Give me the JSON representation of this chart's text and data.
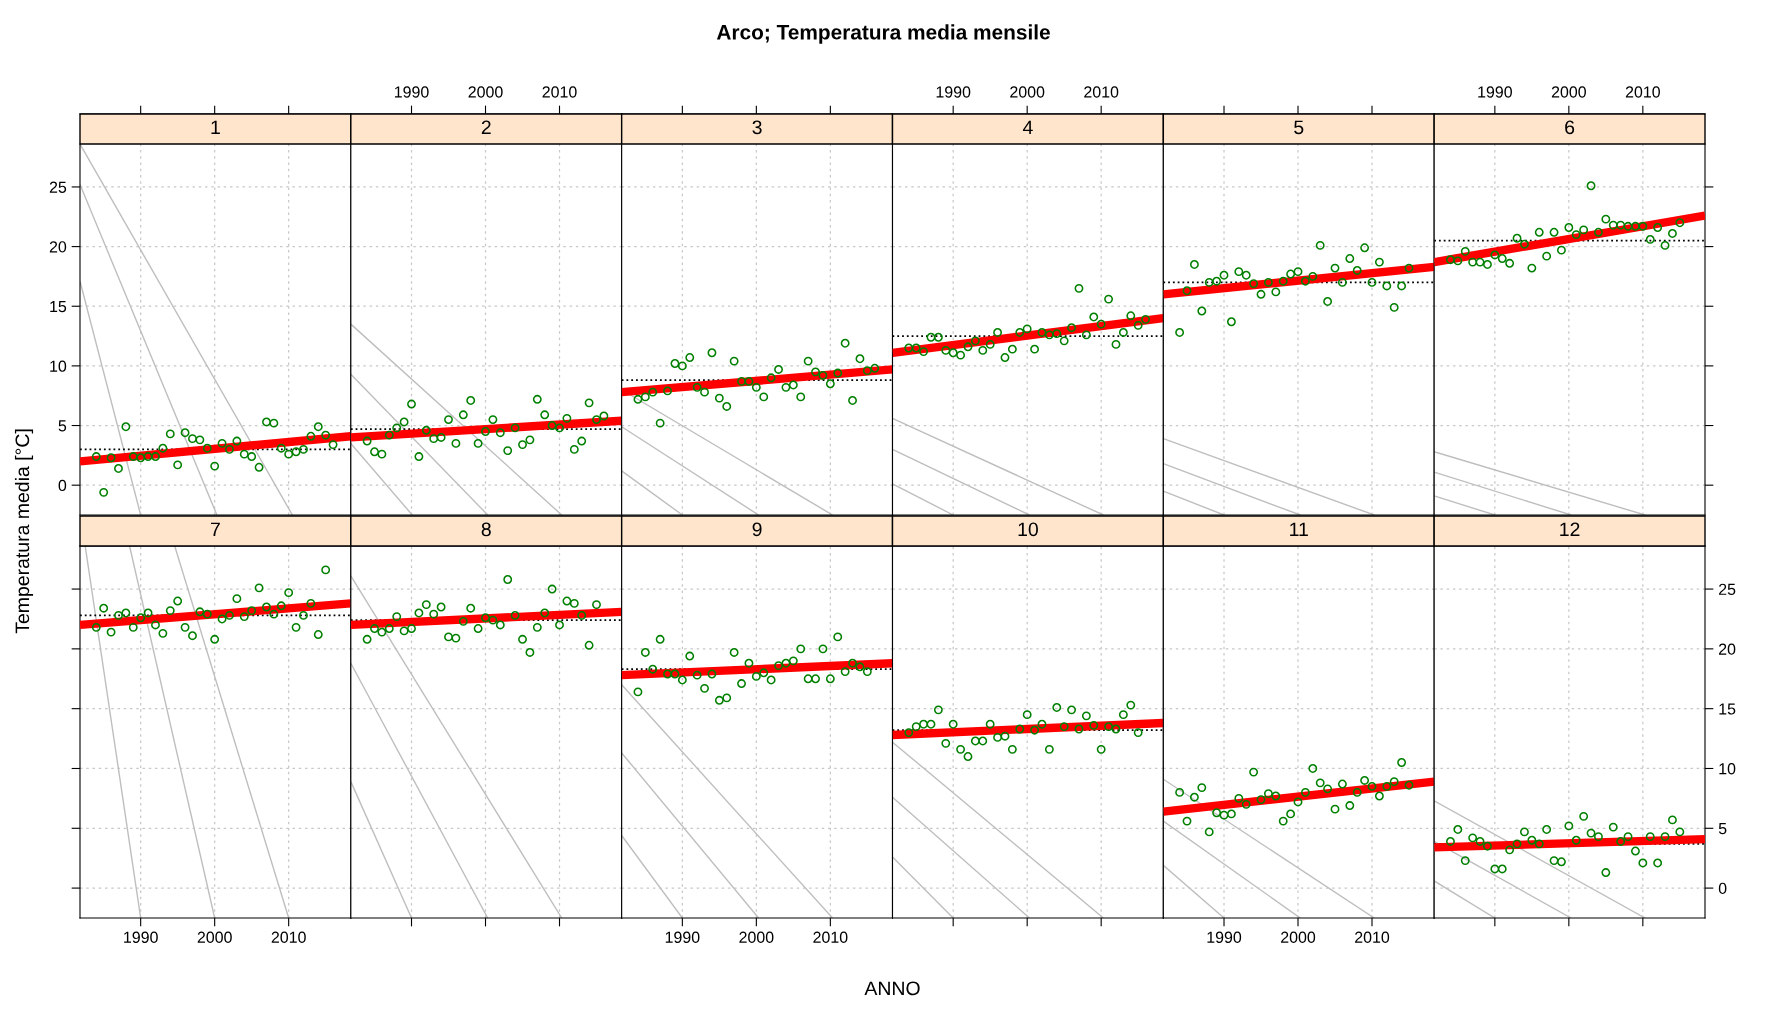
{
  "chart_data": [
    {
      "type": "scatter",
      "title": "1",
      "annotations": [
        "Arco; Temperatura media mensile"
      ],
      "ylabel": "Temperatura media [°C]",
      "xlim": [
        1981.8,
        2018.4
      ],
      "ylim": [
        -2.5,
        28.6
      ],
      "xticks": [
        1990,
        2000,
        2010
      ],
      "yticks": [
        0,
        5,
        10,
        15,
        20,
        25
      ],
      "grid": true,
      "tick_labels": "y",
      "x": [
        1984,
        1985,
        1986,
        1987,
        1988,
        1989,
        1990,
        1991,
        1992,
        1993,
        1994,
        1995,
        1996,
        1997,
        1998,
        1999,
        2000,
        2001,
        2002,
        2003,
        2004,
        2005,
        2006,
        2007,
        2008,
        2009,
        2010,
        2011,
        2012,
        2013,
        2014,
        2015,
        2016
      ],
      "ref_lines": [
        {
          "axis": "y",
          "value": 3.0,
          "color": "#000000",
          "line_style": "dotted"
        }
      ],
      "series": [
        {
          "marker": "circle",
          "color": "#008000",
          "values": [
            2.4,
            -0.6,
            2.3,
            1.4,
            4.9,
            2.4,
            2.3,
            2.4,
            2.4,
            3.1,
            4.3,
            1.7,
            4.4,
            3.9,
            3.8,
            3.1,
            1.6,
            3.5,
            3.0,
            3.7,
            2.6,
            2.4,
            1.5,
            5.3,
            5.2,
            3.1,
            2.6,
            2.8,
            3.0,
            4.1,
            4.9,
            4.2,
            3.4
          ]
        },
        {
          "type": "line",
          "color": "#ff0000",
          "x": [
            1981.8,
            2018.4
          ],
          "values": [
            2.0,
            4.1
          ]
        },
        {
          "type": "line",
          "color": "#bebebe",
          "x": [
            1981.8,
            2010.5
          ],
          "values": [
            28.6,
            -2.5
          ]
        },
        {
          "type": "line",
          "color": "#bebebe",
          "x": [
            1981.8,
            2000.3
          ],
          "values": [
            25.2,
            -2.5
          ]
        },
        {
          "type": "line",
          "color": "#bebebe",
          "x": [
            1981.8,
            1990.0
          ],
          "values": [
            17.1,
            -2.5
          ]
        }
      ]
    },
    {
      "type": "scatter",
      "title": "2",
      "xlim": [
        1981.8,
        2018.4
      ],
      "ylim": [
        -2.5,
        28.6
      ],
      "xticks": [
        1990,
        2000,
        2010
      ],
      "yticks": [
        0,
        5,
        10,
        15,
        20,
        25
      ],
      "grid": true,
      "tick_labels": "x",
      "x": [
        1984,
        1985,
        1986,
        1987,
        1988,
        1989,
        1990,
        1991,
        1992,
        1993,
        1994,
        1995,
        1996,
        1997,
        1998,
        1999,
        2000,
        2001,
        2002,
        2003,
        2004,
        2005,
        2006,
        2007,
        2008,
        2009,
        2010,
        2011,
        2012,
        2013,
        2014,
        2015,
        2016
      ],
      "ref_lines": [
        {
          "axis": "y",
          "value": 4.7,
          "color": "#000000",
          "line_style": "dotted"
        }
      ],
      "series": [
        {
          "marker": "circle",
          "color": "#008000",
          "values": [
            3.7,
            2.8,
            2.6,
            4.2,
            4.8,
            5.3,
            6.8,
            2.4,
            4.6,
            3.9,
            4.0,
            5.5,
            3.5,
            5.9,
            7.1,
            3.5,
            4.5,
            5.5,
            4.4,
            2.9,
            4.8,
            3.4,
            3.8,
            7.2,
            5.9,
            5.0,
            4.8,
            5.6,
            3.0,
            3.7,
            6.9,
            5.5,
            5.8
          ]
        },
        {
          "type": "line",
          "color": "#ff0000",
          "x": [
            1981.8,
            2018.4
          ],
          "values": [
            4.0,
            5.4
          ]
        },
        {
          "type": "line",
          "color": "#bebebe",
          "x": [
            1981.8,
            2010.3
          ],
          "values": [
            13.5,
            -2.5
          ]
        },
        {
          "type": "line",
          "color": "#bebebe",
          "x": [
            1981.8,
            2000.3
          ],
          "values": [
            9.3,
            -2.5
          ]
        },
        {
          "type": "line",
          "color": "#bebebe",
          "x": [
            1981.8,
            1990.1
          ],
          "values": [
            3.5,
            -2.5
          ]
        }
      ]
    },
    {
      "type": "scatter",
      "title": "3",
      "xlim": [
        1981.8,
        2018.4
      ],
      "ylim": [
        -2.5,
        28.6
      ],
      "xticks": [
        1990,
        2000,
        2010
      ],
      "yticks": [
        0,
        5,
        10,
        15,
        20,
        25
      ],
      "grid": true,
      "tick_labels": false,
      "x": [
        1984,
        1985,
        1986,
        1987,
        1988,
        1989,
        1990,
        1991,
        1992,
        1993,
        1994,
        1995,
        1996,
        1997,
        1998,
        1999,
        2000,
        2001,
        2002,
        2003,
        2004,
        2005,
        2006,
        2007,
        2008,
        2009,
        2010,
        2011,
        2012,
        2013,
        2014,
        2015,
        2016
      ],
      "ref_lines": [
        {
          "axis": "y",
          "value": 8.8,
          "color": "#000000",
          "line_style": "dotted"
        }
      ],
      "series": [
        {
          "marker": "circle",
          "color": "#008000",
          "values": [
            7.2,
            7.4,
            7.8,
            5.2,
            7.9,
            10.2,
            10.0,
            10.7,
            8.2,
            7.8,
            11.1,
            7.3,
            6.6,
            10.4,
            8.7,
            8.7,
            8.2,
            7.4,
            9.0,
            9.7,
            8.2,
            8.4,
            7.4,
            10.4,
            9.5,
            9.2,
            8.5,
            9.4,
            11.9,
            7.1,
            10.6,
            9.6,
            9.8
          ]
        },
        {
          "type": "line",
          "color": "#ff0000",
          "x": [
            1981.8,
            2018.4
          ],
          "values": [
            7.8,
            9.7
          ]
        },
        {
          "type": "line",
          "color": "#bebebe",
          "x": [
            1981.8,
            2010.3
          ],
          "values": [
            8.0,
            -2.5
          ]
        },
        {
          "type": "line",
          "color": "#bebebe",
          "x": [
            1981.8,
            2000.3
          ],
          "values": [
            4.9,
            -2.5
          ]
        },
        {
          "type": "line",
          "color": "#bebebe",
          "x": [
            1981.8,
            1990.0
          ],
          "values": [
            1.2,
            -2.5
          ]
        }
      ]
    },
    {
      "type": "scatter",
      "title": "4",
      "xlim": [
        1981.8,
        2018.4
      ],
      "ylim": [
        -2.5,
        28.6
      ],
      "xticks": [
        1990,
        2000,
        2010
      ],
      "yticks": [
        0,
        5,
        10,
        15,
        20,
        25
      ],
      "grid": true,
      "tick_labels": "x",
      "x": [
        1984,
        1985,
        1986,
        1987,
        1988,
        1989,
        1990,
        1991,
        1992,
        1993,
        1994,
        1995,
        1996,
        1997,
        1998,
        1999,
        2000,
        2001,
        2002,
        2003,
        2004,
        2005,
        2006,
        2007,
        2008,
        2009,
        2010,
        2011,
        2012,
        2013,
        2014,
        2015,
        2016
      ],
      "ref_lines": [
        {
          "axis": "y",
          "value": 12.5,
          "color": "#000000",
          "line_style": "dotted"
        }
      ],
      "series": [
        {
          "marker": "circle",
          "color": "#008000",
          "values": [
            11.5,
            11.5,
            11.2,
            12.4,
            12.4,
            11.3,
            11.1,
            10.9,
            11.6,
            12.1,
            11.3,
            11.8,
            12.8,
            10.7,
            11.4,
            12.8,
            13.1,
            11.4,
            12.8,
            12.6,
            12.7,
            12.1,
            13.2,
            16.5,
            12.6,
            14.1,
            13.5,
            15.6,
            11.8,
            12.8,
            14.2,
            13.4,
            13.9
          ]
        },
        {
          "type": "line",
          "color": "#ff0000",
          "x": [
            1981.8,
            2018.4
          ],
          "values": [
            11.1,
            14.0
          ]
        },
        {
          "type": "line",
          "color": "#bebebe",
          "x": [
            1981.8,
            2010.3
          ],
          "values": [
            5.6,
            -2.5
          ]
        },
        {
          "type": "line",
          "color": "#bebebe",
          "x": [
            1981.8,
            2000.3
          ],
          "values": [
            3.0,
            -2.5
          ]
        },
        {
          "type": "line",
          "color": "#bebebe",
          "x": [
            1981.8,
            1990.0
          ],
          "values": [
            0.1,
            -2.5
          ]
        }
      ]
    },
    {
      "type": "scatter",
      "title": "5",
      "xlim": [
        1981.8,
        2018.4
      ],
      "ylim": [
        -2.5,
        28.6
      ],
      "xticks": [
        1990,
        2000,
        2010
      ],
      "yticks": [
        0,
        5,
        10,
        15,
        20,
        25
      ],
      "grid": true,
      "tick_labels": false,
      "x": [
        1984,
        1985,
        1986,
        1987,
        1988,
        1989,
        1990,
        1991,
        1992,
        1993,
        1994,
        1995,
        1996,
        1997,
        1998,
        1999,
        2000,
        2001,
        2002,
        2003,
        2004,
        2005,
        2006,
        2007,
        2008,
        2009,
        2010,
        2011,
        2012,
        2013,
        2014,
        2015
      ],
      "ref_lines": [
        {
          "axis": "y",
          "value": 17.0,
          "color": "#000000",
          "line_style": "dotted"
        }
      ],
      "series": [
        {
          "marker": "circle",
          "color": "#008000",
          "values": [
            12.8,
            16.3,
            18.5,
            14.6,
            17.0,
            17.1,
            17.6,
            13.7,
            17.9,
            17.6,
            16.9,
            16.0,
            17.0,
            16.2,
            17.1,
            17.7,
            17.9,
            17.1,
            17.5,
            20.1,
            15.4,
            18.2,
            17.0,
            19.0,
            18.0,
            19.9,
            17.0,
            18.7,
            16.7,
            14.9,
            16.7,
            18.2
          ]
        },
        {
          "type": "line",
          "color": "#ff0000",
          "x": [
            1981.8,
            2018.4
          ],
          "values": [
            16.0,
            18.3
          ]
        },
        {
          "type": "line",
          "color": "#bebebe",
          "x": [
            1981.8,
            2010.3
          ],
          "values": [
            3.9,
            -2.5
          ]
        },
        {
          "type": "line",
          "color": "#bebebe",
          "x": [
            1981.8,
            2000.3
          ],
          "values": [
            1.8,
            -2.5
          ]
        },
        {
          "type": "line",
          "color": "#bebebe",
          "x": [
            1981.8,
            1990.0
          ],
          "values": [
            -0.5,
            -2.5
          ]
        }
      ]
    },
    {
      "type": "scatter",
      "title": "6",
      "xlim": [
        1981.8,
        2018.4
      ],
      "ylim": [
        -2.5,
        28.6
      ],
      "xticks": [
        1990,
        2000,
        2010
      ],
      "yticks": [
        0,
        5,
        10,
        15,
        20,
        25
      ],
      "grid": true,
      "tick_labels": "x",
      "x": [
        1984,
        1985,
        1986,
        1987,
        1988,
        1989,
        1990,
        1991,
        1992,
        1993,
        1994,
        1995,
        1996,
        1997,
        1998,
        1999,
        2000,
        2001,
        2002,
        2003,
        2004,
        2005,
        2006,
        2007,
        2008,
        2009,
        2010,
        2011,
        2012,
        2013,
        2014,
        2015
      ],
      "ref_lines": [
        {
          "axis": "y",
          "value": 20.5,
          "color": "#000000",
          "line_style": "dotted"
        }
      ],
      "series": [
        {
          "marker": "circle",
          "color": "#008000",
          "values": [
            18.9,
            18.8,
            19.6,
            18.7,
            18.7,
            18.5,
            19.3,
            19.0,
            18.6,
            20.7,
            20.2,
            18.2,
            21.2,
            19.2,
            21.2,
            19.7,
            21.6,
            21.0,
            21.4,
            25.1,
            21.2,
            22.3,
            21.8,
            21.8,
            21.7,
            21.7,
            21.7,
            20.6,
            21.6,
            20.1,
            21.1,
            22.0
          ]
        },
        {
          "type": "line",
          "color": "#ff0000",
          "x": [
            1981.8,
            2018.4
          ],
          "values": [
            18.7,
            22.6
          ]
        },
        {
          "type": "line",
          "color": "#bebebe",
          "x": [
            1981.8,
            2010.3
          ],
          "values": [
            2.8,
            -2.5
          ]
        },
        {
          "type": "line",
          "color": "#bebebe",
          "x": [
            1981.8,
            2000.3
          ],
          "values": [
            1.1,
            -2.5
          ]
        },
        {
          "type": "line",
          "color": "#bebebe",
          "x": [
            1981.8,
            1990.0
          ],
          "values": [
            -0.9,
            -2.5
          ]
        }
      ]
    },
    {
      "type": "scatter",
      "title": "7",
      "xlim": [
        1981.8,
        2018.4
      ],
      "ylim": [
        -2.5,
        28.6
      ],
      "xticks": [
        1990,
        2000,
        2010
      ],
      "yticks": [
        0,
        5,
        10,
        15,
        20,
        25
      ],
      "grid": true,
      "tick_labels": "x",
      "x": [
        1984,
        1985,
        1986,
        1987,
        1988,
        1989,
        1990,
        1991,
        1992,
        1993,
        1994,
        1995,
        1996,
        1997,
        1998,
        1999,
        2000,
        2001,
        2002,
        2003,
        2004,
        2005,
        2006,
        2007,
        2008,
        2009,
        2010,
        2011,
        2012,
        2013,
        2014,
        2015
      ],
      "ref_lines": [
        {
          "axis": "y",
          "value": 22.8,
          "color": "#000000",
          "line_style": "dotted"
        }
      ],
      "series": [
        {
          "marker": "circle",
          "color": "#008000",
          "values": [
            21.8,
            23.4,
            21.4,
            22.8,
            23.0,
            21.8,
            22.6,
            23.0,
            22.0,
            21.3,
            23.2,
            24.0,
            21.8,
            21.1,
            23.1,
            22.9,
            20.8,
            22.5,
            22.8,
            24.2,
            22.7,
            23.2,
            25.1,
            23.5,
            22.9,
            23.6,
            24.7,
            21.8,
            22.8,
            23.8,
            21.2,
            26.6
          ]
        },
        {
          "type": "line",
          "color": "#ff0000",
          "x": [
            1981.8,
            2018.4
          ],
          "values": [
            22.0,
            23.8
          ]
        },
        {
          "type": "line",
          "color": "#bebebe",
          "x": [
            1982.5,
            1990.0
          ],
          "values": [
            28.6,
            -2.5
          ]
        },
        {
          "type": "line",
          "color": "#bebebe",
          "x": [
            1988.5,
            2000.0
          ],
          "values": [
            28.6,
            -2.5
          ]
        },
        {
          "type": "line",
          "color": "#bebebe",
          "x": [
            1994.6,
            2010.0
          ],
          "values": [
            28.6,
            -2.5
          ]
        }
      ]
    },
    {
      "type": "scatter",
      "title": "8",
      "xlim": [
        1981.8,
        2018.4
      ],
      "ylim": [
        -2.5,
        28.6
      ],
      "xticks": [
        1990,
        2000,
        2010
      ],
      "yticks": [
        0,
        5,
        10,
        15,
        20,
        25
      ],
      "grid": true,
      "tick_labels": false,
      "x": [
        1984,
        1985,
        1986,
        1987,
        1988,
        1989,
        1990,
        1991,
        1992,
        1993,
        1994,
        1995,
        1996,
        1997,
        1998,
        1999,
        2000,
        2001,
        2002,
        2003,
        2004,
        2005,
        2006,
        2007,
        2008,
        2009,
        2010,
        2011,
        2012,
        2013,
        2014,
        2015
      ],
      "ref_lines": [
        {
          "axis": "y",
          "value": 22.4,
          "color": "#000000",
          "line_style": "dotted"
        }
      ],
      "series": [
        {
          "marker": "circle",
          "color": "#008000",
          "values": [
            20.8,
            21.7,
            21.4,
            21.7,
            22.7,
            21.5,
            21.7,
            23.0,
            23.7,
            22.9,
            23.5,
            21.0,
            20.9,
            22.3,
            23.4,
            21.7,
            22.6,
            22.4,
            22.0,
            25.8,
            22.8,
            20.8,
            19.7,
            21.8,
            23.0,
            25.0,
            22.0,
            24.0,
            23.8,
            22.8,
            20.3,
            23.7
          ]
        },
        {
          "type": "line",
          "color": "#ff0000",
          "x": [
            1981.8,
            2018.4
          ],
          "values": [
            22.0,
            23.1
          ]
        },
        {
          "type": "line",
          "color": "#bebebe",
          "x": [
            1981.8,
            2010.3
          ],
          "values": [
            26.1,
            -2.5
          ]
        },
        {
          "type": "line",
          "color": "#bebebe",
          "x": [
            1981.8,
            2000.3
          ],
          "values": [
            18.8,
            -2.5
          ]
        },
        {
          "type": "line",
          "color": "#bebebe",
          "x": [
            1981.8,
            1990.0
          ],
          "values": [
            8.9,
            -2.5
          ]
        }
      ]
    },
    {
      "type": "scatter",
      "title": "9",
      "xlim": [
        1981.8,
        2018.4
      ],
      "ylim": [
        -2.5,
        28.6
      ],
      "xticks": [
        1990,
        2000,
        2010
      ],
      "yticks": [
        0,
        5,
        10,
        15,
        20,
        25
      ],
      "grid": true,
      "tick_labels": "x",
      "xlabel": "ANNO",
      "x": [
        1984,
        1985,
        1986,
        1987,
        1988,
        1989,
        1990,
        1991,
        1992,
        1993,
        1994,
        1995,
        1996,
        1997,
        1998,
        1999,
        2000,
        2001,
        2002,
        2003,
        2004,
        2005,
        2006,
        2007,
        2008,
        2009,
        2010,
        2011,
        2012,
        2013,
        2014,
        2015
      ],
      "ref_lines": [
        {
          "axis": "y",
          "value": 18.3,
          "color": "#000000",
          "line_style": "dotted"
        }
      ],
      "series": [
        {
          "marker": "circle",
          "color": "#008000",
          "values": [
            16.4,
            19.7,
            18.3,
            20.8,
            17.9,
            17.9,
            17.4,
            19.4,
            17.8,
            16.7,
            17.9,
            15.7,
            15.9,
            19.7,
            17.1,
            18.8,
            17.7,
            18.0,
            17.4,
            18.6,
            18.8,
            19.0,
            20.0,
            17.5,
            17.5,
            20.0,
            17.5,
            21.0,
            18.1,
            18.8,
            18.5,
            18.1
          ]
        },
        {
          "type": "line",
          "color": "#ff0000",
          "x": [
            1981.8,
            2018.4
          ],
          "values": [
            17.8,
            18.8
          ]
        },
        {
          "type": "line",
          "color": "#bebebe",
          "x": [
            1981.8,
            2010.3
          ],
          "values": [
            17.0,
            -2.5
          ]
        },
        {
          "type": "line",
          "color": "#bebebe",
          "x": [
            1981.8,
            2000.3
          ],
          "values": [
            11.3,
            -2.5
          ]
        },
        {
          "type": "line",
          "color": "#bebebe",
          "x": [
            1981.8,
            1990.0
          ],
          "values": [
            4.4,
            -2.5
          ]
        }
      ]
    },
    {
      "type": "scatter",
      "title": "10",
      "xlim": [
        1981.8,
        2018.4
      ],
      "ylim": [
        -2.5,
        28.6
      ],
      "xticks": [
        1990,
        2000,
        2010
      ],
      "yticks": [
        0,
        5,
        10,
        15,
        20,
        25
      ],
      "grid": true,
      "tick_labels": false,
      "x": [
        1984,
        1985,
        1986,
        1987,
        1988,
        1989,
        1990,
        1991,
        1992,
        1993,
        1994,
        1995,
        1996,
        1997,
        1998,
        1999,
        2000,
        2001,
        2002,
        2003,
        2004,
        2005,
        2006,
        2007,
        2008,
        2009,
        2010,
        2011,
        2012,
        2013,
        2014,
        2015
      ],
      "ref_lines": [
        {
          "axis": "y",
          "value": 13.2,
          "color": "#000000",
          "line_style": "dotted"
        }
      ],
      "series": [
        {
          "marker": "circle",
          "color": "#008000",
          "values": [
            13.0,
            13.5,
            13.7,
            13.7,
            14.9,
            12.1,
            13.7,
            11.6,
            11.0,
            12.3,
            12.3,
            13.7,
            12.6,
            12.7,
            11.6,
            13.3,
            14.5,
            13.2,
            13.7,
            11.6,
            15.1,
            13.5,
            14.9,
            13.3,
            14.4,
            13.6,
            11.6,
            13.5,
            13.3,
            14.5,
            15.3,
            13.0
          ]
        },
        {
          "type": "line",
          "color": "#ff0000",
          "x": [
            1981.8,
            2018.4
          ],
          "values": [
            12.8,
            13.8
          ]
        },
        {
          "type": "line",
          "color": "#bebebe",
          "x": [
            1981.8,
            2010.3
          ],
          "values": [
            12.2,
            -2.5
          ]
        },
        {
          "type": "line",
          "color": "#bebebe",
          "x": [
            1981.8,
            2000.3
          ],
          "values": [
            7.6,
            -2.5
          ]
        },
        {
          "type": "line",
          "color": "#bebebe",
          "x": [
            1981.8,
            1990.0
          ],
          "values": [
            2.6,
            -2.5
          ]
        }
      ]
    },
    {
      "type": "scatter",
      "title": "11",
      "xlim": [
        1981.8,
        2018.4
      ],
      "ylim": [
        -2.5,
        28.6
      ],
      "xticks": [
        1990,
        2000,
        2010
      ],
      "yticks": [
        0,
        5,
        10,
        15,
        20,
        25
      ],
      "grid": true,
      "tick_labels": "x",
      "x": [
        1984,
        1985,
        1986,
        1987,
        1988,
        1989,
        1990,
        1991,
        1992,
        1993,
        1994,
        1995,
        1996,
        1997,
        1998,
        1999,
        2000,
        2001,
        2002,
        2003,
        2004,
        2005,
        2006,
        2007,
        2008,
        2009,
        2010,
        2011,
        2012,
        2013,
        2014,
        2015
      ],
      "series": [
        {
          "marker": "circle",
          "color": "#008000",
          "values": [
            8.0,
            5.6,
            7.6,
            8.4,
            4.7,
            6.3,
            6.1,
            6.2,
            7.5,
            7.0,
            9.7,
            7.4,
            7.9,
            7.7,
            5.6,
            6.2,
            7.2,
            8.0,
            10.0,
            8.8,
            8.3,
            6.6,
            8.7,
            6.9,
            8.0,
            9.0,
            8.5,
            7.7,
            8.5,
            8.9,
            10.5,
            8.6
          ]
        },
        {
          "type": "line",
          "color": "#ff0000",
          "x": [
            1981.8,
            2018.4
          ],
          "values": [
            6.4,
            8.9
          ]
        },
        {
          "type": "line",
          "color": "#bebebe",
          "x": [
            1981.8,
            2010.3
          ],
          "values": [
            9.1,
            -2.5
          ]
        },
        {
          "type": "line",
          "color": "#bebebe",
          "x": [
            1981.8,
            2000.3
          ],
          "values": [
            5.6,
            -2.5
          ]
        },
        {
          "type": "line",
          "color": "#bebebe",
          "x": [
            1981.8,
            1990.0
          ],
          "values": [
            1.9,
            -2.5
          ]
        }
      ]
    },
    {
      "type": "scatter",
      "title": "12",
      "xlim": [
        1981.8,
        2018.4
      ],
      "ylim": [
        -2.5,
        28.6
      ],
      "xticks": [
        1990,
        2000,
        2010
      ],
      "yticks": [
        0,
        5,
        10,
        15,
        20,
        25
      ],
      "grid": true,
      "tick_labels": "y",
      "x": [
        1984,
        1985,
        1986,
        1987,
        1988,
        1989,
        1990,
        1991,
        1992,
        1993,
        1994,
        1995,
        1996,
        1997,
        1998,
        1999,
        2000,
        2001,
        2002,
        2003,
        2004,
        2005,
        2006,
        2007,
        2008,
        2009,
        2010,
        2011,
        2012,
        2013,
        2014,
        2015
      ],
      "ref_lines": [
        {
          "axis": "y",
          "value": 3.7,
          "color": "#000000",
          "line_style": "dotted"
        }
      ],
      "series": [
        {
          "marker": "circle",
          "color": "#008000",
          "values": [
            3.9,
            4.9,
            2.3,
            4.2,
            3.9,
            3.5,
            1.6,
            1.6,
            3.2,
            3.7,
            4.7,
            4.0,
            3.7,
            4.9,
            2.3,
            2.2,
            5.2,
            4.0,
            6.0,
            4.6,
            4.3,
            1.3,
            5.1,
            3.9,
            4.3,
            3.1,
            2.1,
            4.3,
            2.1,
            4.3,
            5.7,
            4.7
          ]
        },
        {
          "type": "line",
          "color": "#ff0000",
          "x": [
            1981.8,
            2018.4
          ],
          "values": [
            3.4,
            4.1
          ]
        },
        {
          "type": "line",
          "color": "#bebebe",
          "x": [
            1981.8,
            2010.3
          ],
          "values": [
            7.3,
            -2.5
          ]
        },
        {
          "type": "line",
          "color": "#bebebe",
          "x": [
            1981.8,
            2000.3
          ],
          "values": [
            3.9,
            -2.5
          ]
        },
        {
          "type": "line",
          "color": "#bebebe",
          "x": [
            1981.8,
            1990.0
          ],
          "values": [
            0.6,
            -2.5
          ]
        }
      ]
    }
  ]
}
